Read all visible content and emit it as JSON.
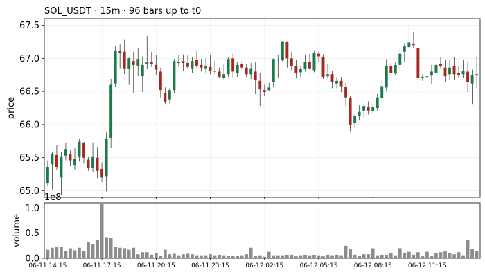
{
  "chart_data": [
    {
      "type": "candlestick",
      "title": "SOL_USDT  ·  15m  ·  96 bars up to t0",
      "xlabel": "",
      "ylabel": "price",
      "ylim": [
        64.9,
        67.6
      ],
      "yticks": [
        65.0,
        65.5,
        66.0,
        66.5,
        67.0,
        67.5
      ],
      "ytick_labels": [
        "65.0",
        "65.5",
        "66.0",
        "66.5",
        "67.0",
        "67.5"
      ],
      "grid": true,
      "colors": {
        "up": "#1b7a4a",
        "down": "#a8281f",
        "wick": "#404040"
      },
      "ohlc": [
        [
          65.12,
          65.46,
          65.08,
          65.36
        ],
        [
          65.4,
          65.58,
          65.02,
          65.55
        ],
        [
          65.54,
          65.69,
          65.32,
          65.36
        ],
        [
          65.2,
          65.58,
          64.94,
          65.52
        ],
        [
          65.53,
          65.72,
          65.46,
          65.63
        ],
        [
          65.55,
          65.61,
          65.38,
          65.46
        ],
        [
          65.39,
          65.64,
          65.31,
          65.48
        ],
        [
          65.52,
          65.78,
          65.44,
          65.74
        ],
        [
          65.72,
          65.74,
          65.41,
          65.5
        ],
        [
          65.47,
          65.51,
          65.3,
          65.34
        ],
        [
          65.34,
          65.73,
          65.28,
          65.52
        ],
        [
          65.5,
          65.66,
          65.19,
          65.3
        ],
        [
          65.33,
          65.43,
          65.13,
          65.2
        ],
        [
          65.22,
          65.88,
          64.99,
          65.79
        ],
        [
          65.8,
          66.69,
          65.65,
          66.6
        ],
        [
          66.62,
          67.18,
          66.57,
          67.12
        ],
        [
          67.11,
          67.21,
          66.85,
          67.08
        ],
        [
          67.1,
          67.28,
          66.76,
          66.85
        ],
        [
          66.84,
          67.02,
          66.6,
          67.0
        ],
        [
          66.96,
          67.1,
          66.48,
          66.9
        ],
        [
          66.89,
          67.15,
          66.73,
          66.99
        ],
        [
          66.73,
          67.03,
          66.49,
          66.9
        ],
        [
          66.91,
          67.34,
          66.84,
          66.94
        ],
        [
          66.94,
          67.1,
          66.87,
          66.91
        ],
        [
          66.9,
          67.05,
          66.75,
          66.83
        ],
        [
          66.8,
          66.86,
          66.41,
          66.52
        ],
        [
          66.48,
          66.56,
          66.31,
          66.34
        ],
        [
          66.38,
          66.55,
          66.32,
          66.52
        ],
        [
          66.52,
          66.99,
          66.48,
          66.96
        ],
        [
          66.93,
          67.05,
          66.87,
          66.95
        ],
        [
          66.96,
          67.06,
          66.81,
          66.93
        ],
        [
          66.93,
          67.05,
          66.84,
          66.87
        ],
        [
          66.85,
          67.02,
          66.78,
          66.96
        ],
        [
          66.98,
          67.12,
          66.85,
          66.89
        ],
        [
          66.9,
          66.99,
          66.8,
          66.86
        ],
        [
          66.85,
          67.0,
          66.78,
          66.88
        ],
        [
          66.87,
          67.05,
          66.76,
          66.81
        ],
        [
          66.81,
          66.96,
          66.76,
          66.8
        ],
        [
          66.8,
          66.86,
          66.7,
          66.72
        ],
        [
          66.7,
          66.91,
          66.67,
          66.76
        ],
        [
          66.76,
          67.02,
          66.72,
          66.99
        ],
        [
          67.0,
          67.08,
          66.7,
          66.8
        ],
        [
          66.78,
          66.95,
          66.72,
          66.9
        ],
        [
          66.92,
          66.96,
          66.82,
          66.86
        ],
        [
          66.86,
          66.92,
          66.72,
          66.76
        ],
        [
          66.76,
          66.93,
          66.69,
          66.85
        ],
        [
          66.8,
          66.94,
          66.46,
          66.67
        ],
        [
          66.66,
          66.78,
          66.28,
          66.53
        ],
        [
          66.52,
          66.6,
          66.44,
          66.49
        ],
        [
          66.52,
          66.63,
          66.5,
          66.56
        ],
        [
          66.64,
          67.0,
          66.56,
          66.99
        ],
        [
          66.98,
          67.05,
          66.7,
          66.98
        ],
        [
          66.97,
          67.26,
          66.94,
          67.26
        ],
        [
          67.25,
          67.26,
          66.86,
          67.0
        ],
        [
          67.0,
          67.1,
          66.82,
          66.88
        ],
        [
          66.89,
          66.98,
          66.71,
          66.78
        ],
        [
          66.79,
          66.88,
          66.72,
          66.84
        ],
        [
          66.84,
          67.05,
          66.8,
          66.95
        ],
        [
          66.94,
          67.07,
          66.83,
          66.85
        ],
        [
          66.82,
          67.11,
          66.79,
          67.08
        ],
        [
          67.07,
          67.1,
          66.95,
          67.03
        ],
        [
          67.02,
          67.06,
          66.69,
          66.72
        ],
        [
          66.73,
          66.92,
          66.7,
          66.76
        ],
        [
          66.76,
          66.81,
          66.55,
          66.64
        ],
        [
          66.62,
          66.72,
          66.55,
          66.66
        ],
        [
          66.66,
          66.72,
          66.49,
          66.58
        ],
        [
          66.57,
          66.63,
          66.28,
          66.41
        ],
        [
          66.4,
          66.43,
          65.9,
          65.99
        ],
        [
          66.02,
          66.16,
          65.94,
          66.13
        ],
        [
          66.13,
          66.29,
          66.06,
          66.19
        ],
        [
          66.21,
          66.31,
          66.11,
          66.28
        ],
        [
          66.27,
          66.35,
          66.15,
          66.21
        ],
        [
          66.2,
          66.31,
          66.17,
          66.27
        ],
        [
          66.25,
          66.46,
          66.21,
          66.41
        ],
        [
          66.4,
          66.69,
          66.38,
          66.58
        ],
        [
          66.56,
          66.99,
          66.5,
          66.89
        ],
        [
          66.88,
          66.94,
          66.74,
          66.78
        ],
        [
          66.77,
          66.95,
          66.74,
          66.9
        ],
        [
          66.9,
          67.15,
          66.8,
          67.07
        ],
        [
          67.1,
          67.23,
          66.95,
          67.18
        ],
        [
          67.17,
          67.48,
          67.14,
          67.24
        ],
        [
          67.22,
          67.4,
          67.16,
          67.2
        ],
        [
          67.15,
          67.18,
          66.53,
          66.71
        ],
        [
          66.7,
          66.76,
          66.66,
          66.72
        ],
        [
          66.72,
          66.94,
          66.64,
          66.73
        ],
        [
          66.74,
          66.9,
          66.61,
          66.8
        ],
        [
          66.78,
          66.92,
          66.77,
          66.9
        ],
        [
          66.91,
          67.02,
          66.85,
          66.88
        ],
        [
          66.86,
          66.98,
          66.65,
          66.73
        ],
        [
          66.76,
          66.98,
          66.67,
          66.86
        ],
        [
          66.88,
          67.02,
          66.68,
          66.76
        ],
        [
          66.78,
          66.88,
          66.71,
          66.75
        ],
        [
          66.76,
          66.98,
          66.7,
          66.81
        ],
        [
          66.8,
          66.94,
          66.49,
          66.64
        ],
        [
          66.62,
          66.83,
          66.31,
          66.75
        ],
        [
          66.74,
          67.03,
          66.55,
          66.76
        ]
      ]
    },
    {
      "type": "bar",
      "xlabel": "",
      "ylabel": "volume",
      "y_offset_label": "1e8",
      "ylim": [
        0,
        1.1
      ],
      "yticks": [
        0.0,
        0.5,
        1.0
      ],
      "ytick_labels": [
        "0.0",
        "0.5",
        "1.0"
      ],
      "grid": true,
      "color": "#8c8c8c",
      "x_tick_labels": [
        "06-11 14:15",
        "06-11 17:15",
        "06-11 20:15",
        "06-11 23:15",
        "06-12 02:15",
        "06-12 05:15",
        "06-12 08:15",
        "06-12 11:15"
      ],
      "x_tick_bar_index": [
        0,
        12,
        24,
        36,
        48,
        60,
        72,
        84
      ],
      "values": [
        0.17,
        0.21,
        0.23,
        0.22,
        0.14,
        0.2,
        0.16,
        0.21,
        0.14,
        0.32,
        0.28,
        0.36,
        1.08,
        0.42,
        0.4,
        0.23,
        0.21,
        0.2,
        0.17,
        0.21,
        0.08,
        0.12,
        0.12,
        0.07,
        0.11,
        0.05,
        0.17,
        0.08,
        0.09,
        0.06,
        0.08,
        0.09,
        0.08,
        0.06,
        0.06,
        0.06,
        0.08,
        0.06,
        0.07,
        0.06,
        0.05,
        0.05,
        0.05,
        0.06,
        0.08,
        0.21,
        0.05,
        0.06,
        0.03,
        0.13,
        0.06,
        0.06,
        0.06,
        0.07,
        0.07,
        0.04,
        0.06,
        0.07,
        0.06,
        0.07,
        0.06,
        0.04,
        0.07,
        0.06,
        0.07,
        0.06,
        0.25,
        0.18,
        0.07,
        0.05,
        0.08,
        0.08,
        0.2,
        0.06,
        0.07,
        0.07,
        0.11,
        0.06,
        0.2,
        0.1,
        0.13,
        0.07,
        0.12,
        0.04,
        0.13,
        0.05,
        0.1,
        0.12,
        0.14,
        0.11,
        0.08,
        0.12,
        0.06,
        0.36,
        0.19,
        0.15
      ]
    }
  ]
}
